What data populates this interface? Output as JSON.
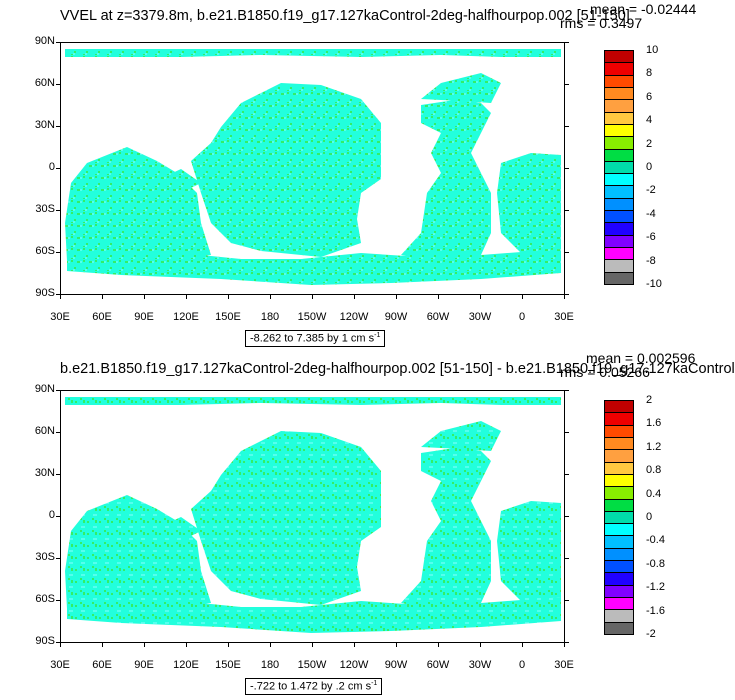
{
  "top": {
    "title": "VVEL at z=3379.8m, b.e21.B1850.f19_g17.127kaControl-2deg-halfhourpop.002 [51-150]",
    "mean": "mean = -0.02444",
    "rms": "rms = 0.3497",
    "range": "-8.262 to 7.385 by 1 cm s",
    "range_sup": "-1",
    "colorbar_labels": [
      "10",
      "8",
      "6",
      "4",
      "2",
      "0",
      "-2",
      "-4",
      "-6",
      "-8",
      "-10"
    ]
  },
  "bottom": {
    "title": "b.e21.B1850.f19_g17.127kaControl-2deg-halfhourpop.002 [51-150] - b.e21.B1850.f19_g17.127kaControl",
    "mean": "mean = 0.002596",
    "rms": "rms = 0.05266",
    "range": "-.722 to 1.472 by .2 cm s",
    "range_sup": "-1",
    "colorbar_labels": [
      "2",
      "1.6",
      "1.2",
      "0.8",
      "0.4",
      "0",
      "-0.4",
      "-0.8",
      "-1.2",
      "-1.6",
      "-2"
    ]
  },
  "lat_labels": [
    "90N",
    "60N",
    "30N",
    "0",
    "30S",
    "60S",
    "90S"
  ],
  "lon_labels": [
    "30E",
    "60E",
    "90E",
    "120E",
    "150E",
    "180",
    "150W",
    "120W",
    "90W",
    "60W",
    "30W",
    "0",
    "30E"
  ],
  "colors": {
    "colorbar_top_to_bottom": [
      "#c00000",
      "#ee0000",
      "#ff4a00",
      "#ff8a20",
      "#ffa040",
      "#ffc840",
      "#ffff00",
      "#88ee00",
      "#00dd44",
      "#00ddaa",
      "#00ffff",
      "#00c0ff",
      "#0090ff",
      "#0050ff",
      "#2000ff",
      "#8000ff",
      "#ff00ff",
      "#bbbbbb",
      "#666666"
    ],
    "field_main": "#22ffdd",
    "field_secondary": "#33ee66"
  }
}
